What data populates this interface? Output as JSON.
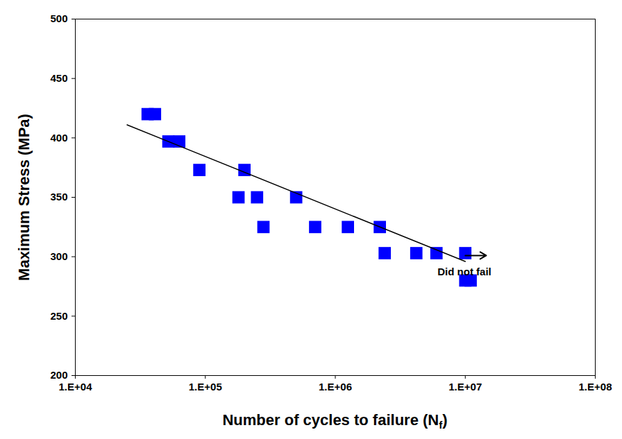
{
  "chart_data": {
    "type": "scatter",
    "x_label": "Number of cycles to failure (N",
    "x_label_subscript": "f",
    "x_label_suffix": ")",
    "y_label": "Maximum Stress (MPa)",
    "log": "x",
    "grid": false,
    "xlim": [
      10000,
      100000000
    ],
    "xticks": [
      {
        "value": 10000,
        "label": "1.E+04"
      },
      {
        "value": 100000,
        "label": "1.E+05"
      },
      {
        "value": 1000000,
        "label": "1.E+06"
      },
      {
        "value": 10000000,
        "label": "1.E+07"
      },
      {
        "value": 100000000,
        "label": "1.E+08"
      }
    ],
    "ylim": [
      200,
      500
    ],
    "yticks": [
      200,
      250,
      300,
      350,
      400,
      450,
      500
    ],
    "series": [
      {
        "type": "scatter",
        "marker": "square",
        "color": "#0000ff",
        "x": [
          36000,
          41000,
          52000,
          63000,
          90000,
          200000,
          180000,
          250000,
          500000,
          280000,
          700000,
          1250000,
          2200000,
          2400000,
          4200000,
          6000000,
          10000000,
          10000000,
          11000000
        ],
        "values": [
          420,
          420,
          397,
          397,
          373,
          373,
          350,
          350,
          350,
          325,
          325,
          325,
          325,
          303,
          303,
          303,
          303,
          280,
          280
        ]
      },
      {
        "type": "line",
        "line_style": "solid",
        "color": "#000000",
        "x": [
          25000,
          10000000
        ],
        "values": [
          411,
          296
        ]
      }
    ],
    "annotations": [
      {
        "text": "Did not fail",
        "x": 10000000,
        "y": 293,
        "arrow": {
          "x1": 10000000,
          "y1": 301,
          "x2": 14500000,
          "y2": 301
        }
      }
    ]
  }
}
